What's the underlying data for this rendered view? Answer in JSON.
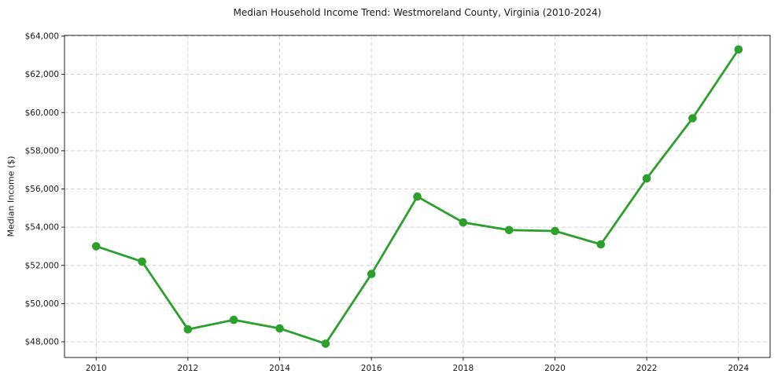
{
  "chart_data": {
    "type": "line",
    "title": "Median Household Income Trend: Westmoreland County, Virginia (2010-2024)",
    "xlabel": "",
    "ylabel": "Median Income ($)",
    "x": [
      2010,
      2011,
      2012,
      2013,
      2014,
      2015,
      2016,
      2017,
      2018,
      2019,
      2020,
      2021,
      2022,
      2023,
      2024
    ],
    "values": [
      53000,
      52200,
      48650,
      49150,
      48700,
      47900,
      51550,
      55600,
      54250,
      53850,
      53800,
      53100,
      56550,
      59700,
      63300
    ],
    "x_ticks": [
      2010,
      2012,
      2014,
      2016,
      2018,
      2020,
      2022,
      2024
    ],
    "x_tick_labels": [
      "2010",
      "2012",
      "2014",
      "2016",
      "2018",
      "2020",
      "2022",
      "2024"
    ],
    "y_ticks": [
      48000,
      50000,
      52000,
      54000,
      56000,
      58000,
      60000,
      62000,
      64000
    ],
    "y_tick_labels": [
      "$48,000",
      "$50,000",
      "$52,000",
      "$54,000",
      "$56,000",
      "$58,000",
      "$60,000",
      "$62,000",
      "$64,000"
    ],
    "xlim": [
      2009.31,
      2024.69
    ],
    "ylim": [
      47178,
      64041
    ],
    "grid": true,
    "grid_style": "dashed",
    "legend": false,
    "marker": "circle",
    "line_color": "#2ca02c",
    "grid_color": "#d0d0d0",
    "axis_color": "#222222",
    "tick_label_color": "#1a1a1a",
    "background": "#ffffff"
  }
}
